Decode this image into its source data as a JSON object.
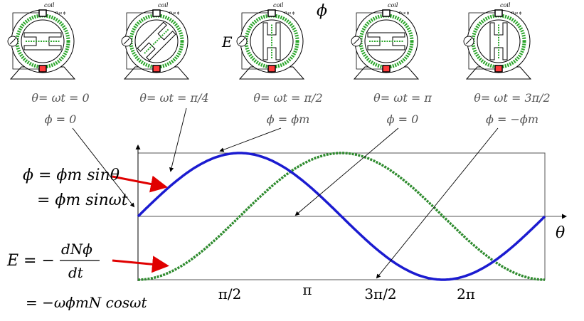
{
  "generators": [
    {
      "theta": "θ= ωt = 0",
      "phi": "ϕ = 0",
      "coil_label": "coil",
      "flux_label": "flux ϕ"
    },
    {
      "theta": "θ= ωt = π/4",
      "phi": "",
      "coil_label": "coil",
      "flux_label": "flux ϕ"
    },
    {
      "theta": "θ= ωt = π/2",
      "phi": "ϕ = ϕm",
      "coil_label": "coil",
      "flux_label": "flux ϕ"
    },
    {
      "theta": "θ= ωt = π",
      "phi": "ϕ = 0",
      "coil_label": "coil",
      "flux_label": "flux ϕ"
    },
    {
      "theta": "θ= ωt = 3π/2",
      "phi": "ϕ = −ϕm",
      "coil_label": "coil",
      "flux_label": "flux ϕ"
    }
  ],
  "emf_symbol": "E",
  "flux_symbol": "ϕ",
  "equations": {
    "flux_line1": "ϕ = ϕm sinθ",
    "flux_line2": "= ϕm sinωt",
    "emf_lhs": "E = −",
    "emf_num": "dNϕ",
    "emf_den": "dt",
    "emf_line2": "= −ωϕmN cosωt"
  },
  "axis_label": "θ",
  "x_ticks": [
    "π/2",
    "π",
    "3π/2",
    "2π"
  ],
  "colors": {
    "flux_curve": "#1b1bd0",
    "emf_curve": "#2e8b2e",
    "arrow": "#e00000",
    "ring": "#2aa52a"
  },
  "chart_data": {
    "type": "line",
    "xlabel": "θ",
    "x_range": [
      0,
      6.2832
    ],
    "y_range": [
      -1,
      1
    ],
    "x_ticks": [
      "π/2",
      "π",
      "3π/2",
      "2π"
    ],
    "series": [
      {
        "name": "ϕ = ϕm sinθ",
        "function": "sin",
        "color": "#1b1bd0",
        "style": "solid"
      },
      {
        "name": "E = −ωϕmN cosωt",
        "function": "-cos",
        "color": "#2e8b2e",
        "style": "dashed"
      }
    ]
  }
}
